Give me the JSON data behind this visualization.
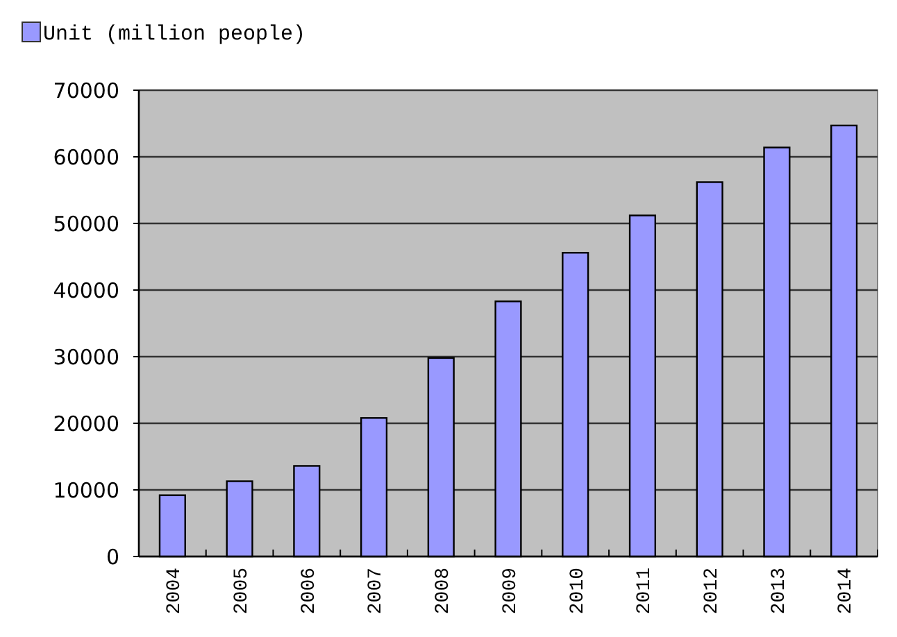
{
  "chart_data": {
    "type": "bar",
    "categories": [
      "2004",
      "2005",
      "2006",
      "2007",
      "2008",
      "2009",
      "2010",
      "2011",
      "2012",
      "2013",
      "2014"
    ],
    "series": [
      {
        "name": "Unit (million people)",
        "color": "#9999ff",
        "values": [
          9200,
          11300,
          13600,
          20800,
          29800,
          38300,
          45600,
          51200,
          56200,
          61400,
          64700
        ]
      }
    ],
    "ylim": [
      0,
      70000
    ],
    "yticks": [
      0,
      10000,
      20000,
      30000,
      40000,
      50000,
      60000,
      70000
    ],
    "grid": "y",
    "legend": "top left"
  }
}
